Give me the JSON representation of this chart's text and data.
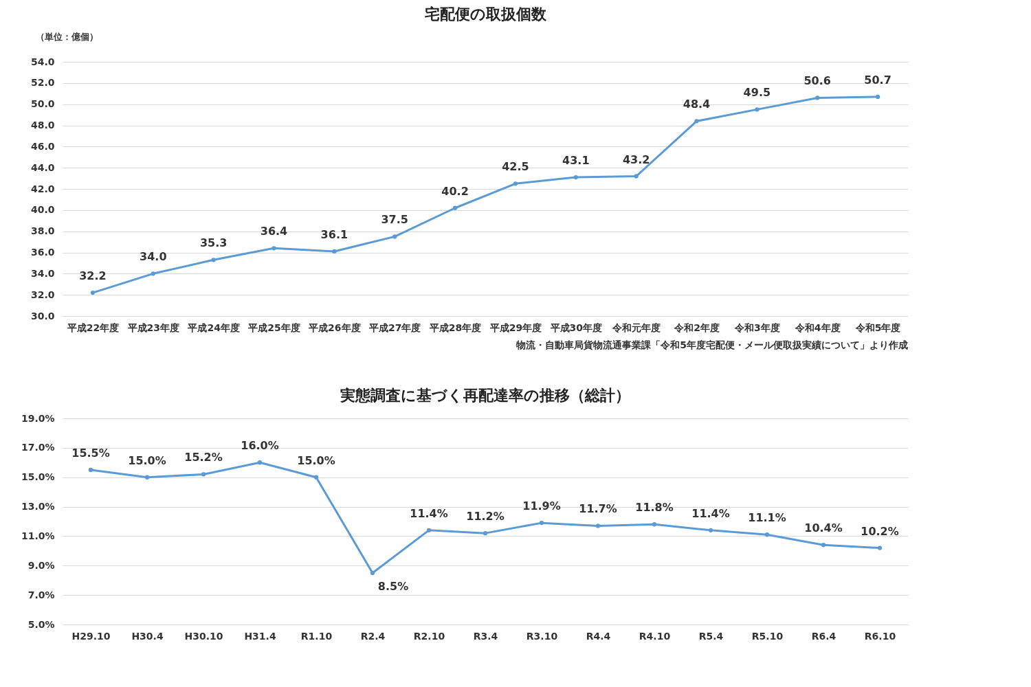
{
  "chart_data": [
    {
      "type": "line",
      "title": "宅配便の取扱個数",
      "ylabel": "（単位：億個）",
      "categories": [
        "平成22年度",
        "平成23年度",
        "平成24年度",
        "平成25年度",
        "平成26年度",
        "平成27年度",
        "平成28年度",
        "平成29年度",
        "平成30年度",
        "令和元年度",
        "令和2年度",
        "令和3年度",
        "令和4年度",
        "令和5年度"
      ],
      "series": [
        {
          "color": "#5b9bd5",
          "values": [
            32.2,
            34.0,
            35.3,
            36.4,
            36.1,
            37.5,
            40.2,
            42.5,
            43.1,
            43.2,
            48.4,
            49.5,
            50.6,
            50.7
          ],
          "value_labels": [
            "32.2",
            "34.0",
            "35.3",
            "36.4",
            "36.1",
            "37.5",
            "40.2",
            "42.5",
            "43.1",
            "43.2",
            "48.4",
            "49.5",
            "50.6",
            "50.7"
          ]
        }
      ],
      "ylim": [
        30,
        54
      ],
      "yticks": [
        {
          "value": 30,
          "label": "30.0"
        },
        {
          "value": 32,
          "label": "32.0"
        },
        {
          "value": 34,
          "label": "34.0"
        },
        {
          "value": 36,
          "label": "36.0"
        },
        {
          "value": 38,
          "label": "38.0"
        },
        {
          "value": 40,
          "label": "40.0"
        },
        {
          "value": 42,
          "label": "42.0"
        },
        {
          "value": 44,
          "label": "44.0"
        },
        {
          "value": 46,
          "label": "46.0"
        },
        {
          "value": 48,
          "label": "48.0"
        },
        {
          "value": 50,
          "label": "50.0"
        },
        {
          "value": 52,
          "label": "52.0"
        },
        {
          "value": 54,
          "label": "54.0"
        }
      ],
      "grid": "y",
      "marker": "circle",
      "line_style": "solid",
      "annotations": [
        "物流・自動車局貨物流通事業課「令和5年度宅配便・メール便取扱実績について」より作成"
      ]
    },
    {
      "type": "line",
      "title": "実態調査に基づく再配達率の推移（総計）",
      "categories": [
        "H29.10",
        "H30.4",
        "H30.10",
        "H31.4",
        "R1.10",
        "R2.4",
        "R2.10",
        "R3.4",
        "R3.10",
        "R4.4",
        "R4.10",
        "R5.4",
        "R5.10",
        "R6.4",
        "R6.10"
      ],
      "series": [
        {
          "color": "#5b9bd5",
          "values": [
            15.5,
            15.0,
            15.2,
            16.0,
            15.0,
            8.5,
            11.4,
            11.2,
            11.9,
            11.7,
            11.8,
            11.4,
            11.1,
            10.4,
            10.2
          ],
          "value_labels": [
            "15.5%",
            "15.0%",
            "15.2%",
            "16.0%",
            "15.0%",
            "8.5%",
            "11.4%",
            "11.2%",
            "11.9%",
            "11.7%",
            "11.8%",
            "11.4%",
            "11.1%",
            "10.4%",
            "10.2%"
          ]
        }
      ],
      "ylim": [
        5,
        19
      ],
      "yticks": [
        {
          "value": 5,
          "label": "5.0%"
        },
        {
          "value": 7,
          "label": "7.0%"
        },
        {
          "value": 9,
          "label": "9.0%"
        },
        {
          "value": 11,
          "label": "11.0%"
        },
        {
          "value": 13,
          "label": "13.0%"
        },
        {
          "value": 15,
          "label": "15.0%"
        },
        {
          "value": 17,
          "label": "17.0%"
        },
        {
          "value": 19,
          "label": "19.0%"
        }
      ],
      "grid": "y",
      "marker": "circle",
      "line_style": "solid"
    }
  ]
}
